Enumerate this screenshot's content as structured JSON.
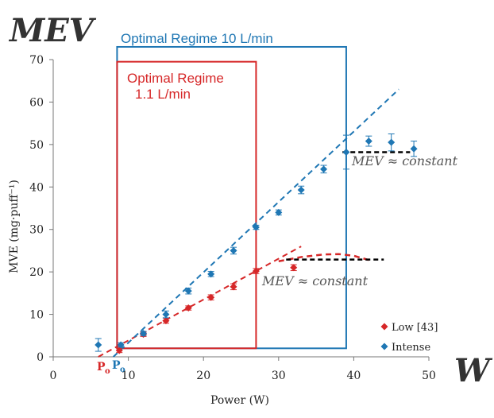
{
  "corner_labels": {
    "y_big": "MEV",
    "x_big": "W"
  },
  "regimes": [
    {
      "label_line1": "Optimal Regime  10 L/min",
      "label_line2": "",
      "color": "#1f77b4",
      "x_range": [
        8.5,
        39.0
      ],
      "y_range": [
        2.0,
        73.0
      ]
    },
    {
      "label_line1": "Optimal Regime",
      "label_line2": "1.1 L/min",
      "color": "#d62728",
      "x_range": [
        8.5,
        27.0
      ],
      "y_range": [
        2.0,
        69.5
      ]
    }
  ],
  "annotations": {
    "intense_plateau": "MEV ≈ constant",
    "low_plateau": "MEV ≈ constant",
    "p_low": "P",
    "p_low_sub": "o",
    "p_intense": "P",
    "p_intense_sub": "o"
  },
  "chart_data": {
    "type": "scatter",
    "xlabel": "Power (W)",
    "ylabel": "MVE (mg·puff⁻¹)",
    "xlim": [
      0,
      50
    ],
    "ylim": [
      0,
      70
    ],
    "xticks": [
      0,
      10,
      20,
      30,
      40,
      50
    ],
    "yticks": [
      0,
      10,
      20,
      30,
      40,
      50,
      60,
      70
    ],
    "grid": false,
    "legend_position": "bottom-right",
    "series": [
      {
        "name": "Low [43]",
        "color": "#d62728",
        "marker": "diamond",
        "points": [
          {
            "x": 8.8,
            "y": 1.5,
            "err": 0.5
          },
          {
            "x": 12,
            "y": 5.3,
            "err": 0.5
          },
          {
            "x": 15,
            "y": 8.5,
            "err": 0.6
          },
          {
            "x": 18,
            "y": 11.5,
            "err": 0.5
          },
          {
            "x": 21,
            "y": 14.0,
            "err": 0.6
          },
          {
            "x": 24,
            "y": 16.5,
            "err": 0.7
          },
          {
            "x": 27,
            "y": 20.2,
            "err": 0.6
          },
          {
            "x": 32,
            "y": 21.0,
            "err": 0.7
          }
        ],
        "fit_line": [
          [
            6.0,
            0
          ],
          [
            33.0,
            26.0
          ]
        ],
        "plateau_curve": [
          [
            30,
            22.5
          ],
          [
            33,
            23.5
          ],
          [
            36,
            24.1
          ],
          [
            38,
            24.2
          ],
          [
            40,
            23.8
          ],
          [
            42,
            22.8
          ]
        ],
        "plateau_line": [
          [
            31.0,
            22.9
          ],
          [
            44.0,
            22.9
          ]
        ]
      },
      {
        "name": "Intense",
        "color": "#1f77b4",
        "marker": "diamond",
        "points": [
          {
            "x": 6,
            "y": 2.8,
            "err": 1.5
          },
          {
            "x": 9,
            "y": 2.8,
            "err": 0.5
          },
          {
            "x": 12,
            "y": 5.5,
            "err": 0.5
          },
          {
            "x": 15,
            "y": 10.0,
            "err": 0.8
          },
          {
            "x": 18,
            "y": 15.5,
            "err": 0.7
          },
          {
            "x": 21,
            "y": 19.5,
            "err": 0.6
          },
          {
            "x": 24,
            "y": 25.0,
            "err": 0.8
          },
          {
            "x": 27,
            "y": 30.5,
            "err": 0.5
          },
          {
            "x": 30,
            "y": 34.0,
            "err": 0.6
          },
          {
            "x": 33,
            "y": 39.3,
            "err": 0.9
          },
          {
            "x": 36,
            "y": 44.2,
            "err": 0.9
          },
          {
            "x": 39,
            "y": 48.2,
            "err": 4.0
          },
          {
            "x": 42,
            "y": 50.8,
            "err": 1.2
          },
          {
            "x": 45,
            "y": 50.5,
            "err": 2.0
          },
          {
            "x": 48,
            "y": 49.0,
            "err": 1.8
          }
        ],
        "fit_line": [
          [
            8.0,
            0
          ],
          [
            46.0,
            63.0
          ]
        ],
        "plateau_line": [
          [
            38.5,
            48.2
          ],
          [
            47.5,
            48.2
          ]
        ]
      }
    ]
  }
}
